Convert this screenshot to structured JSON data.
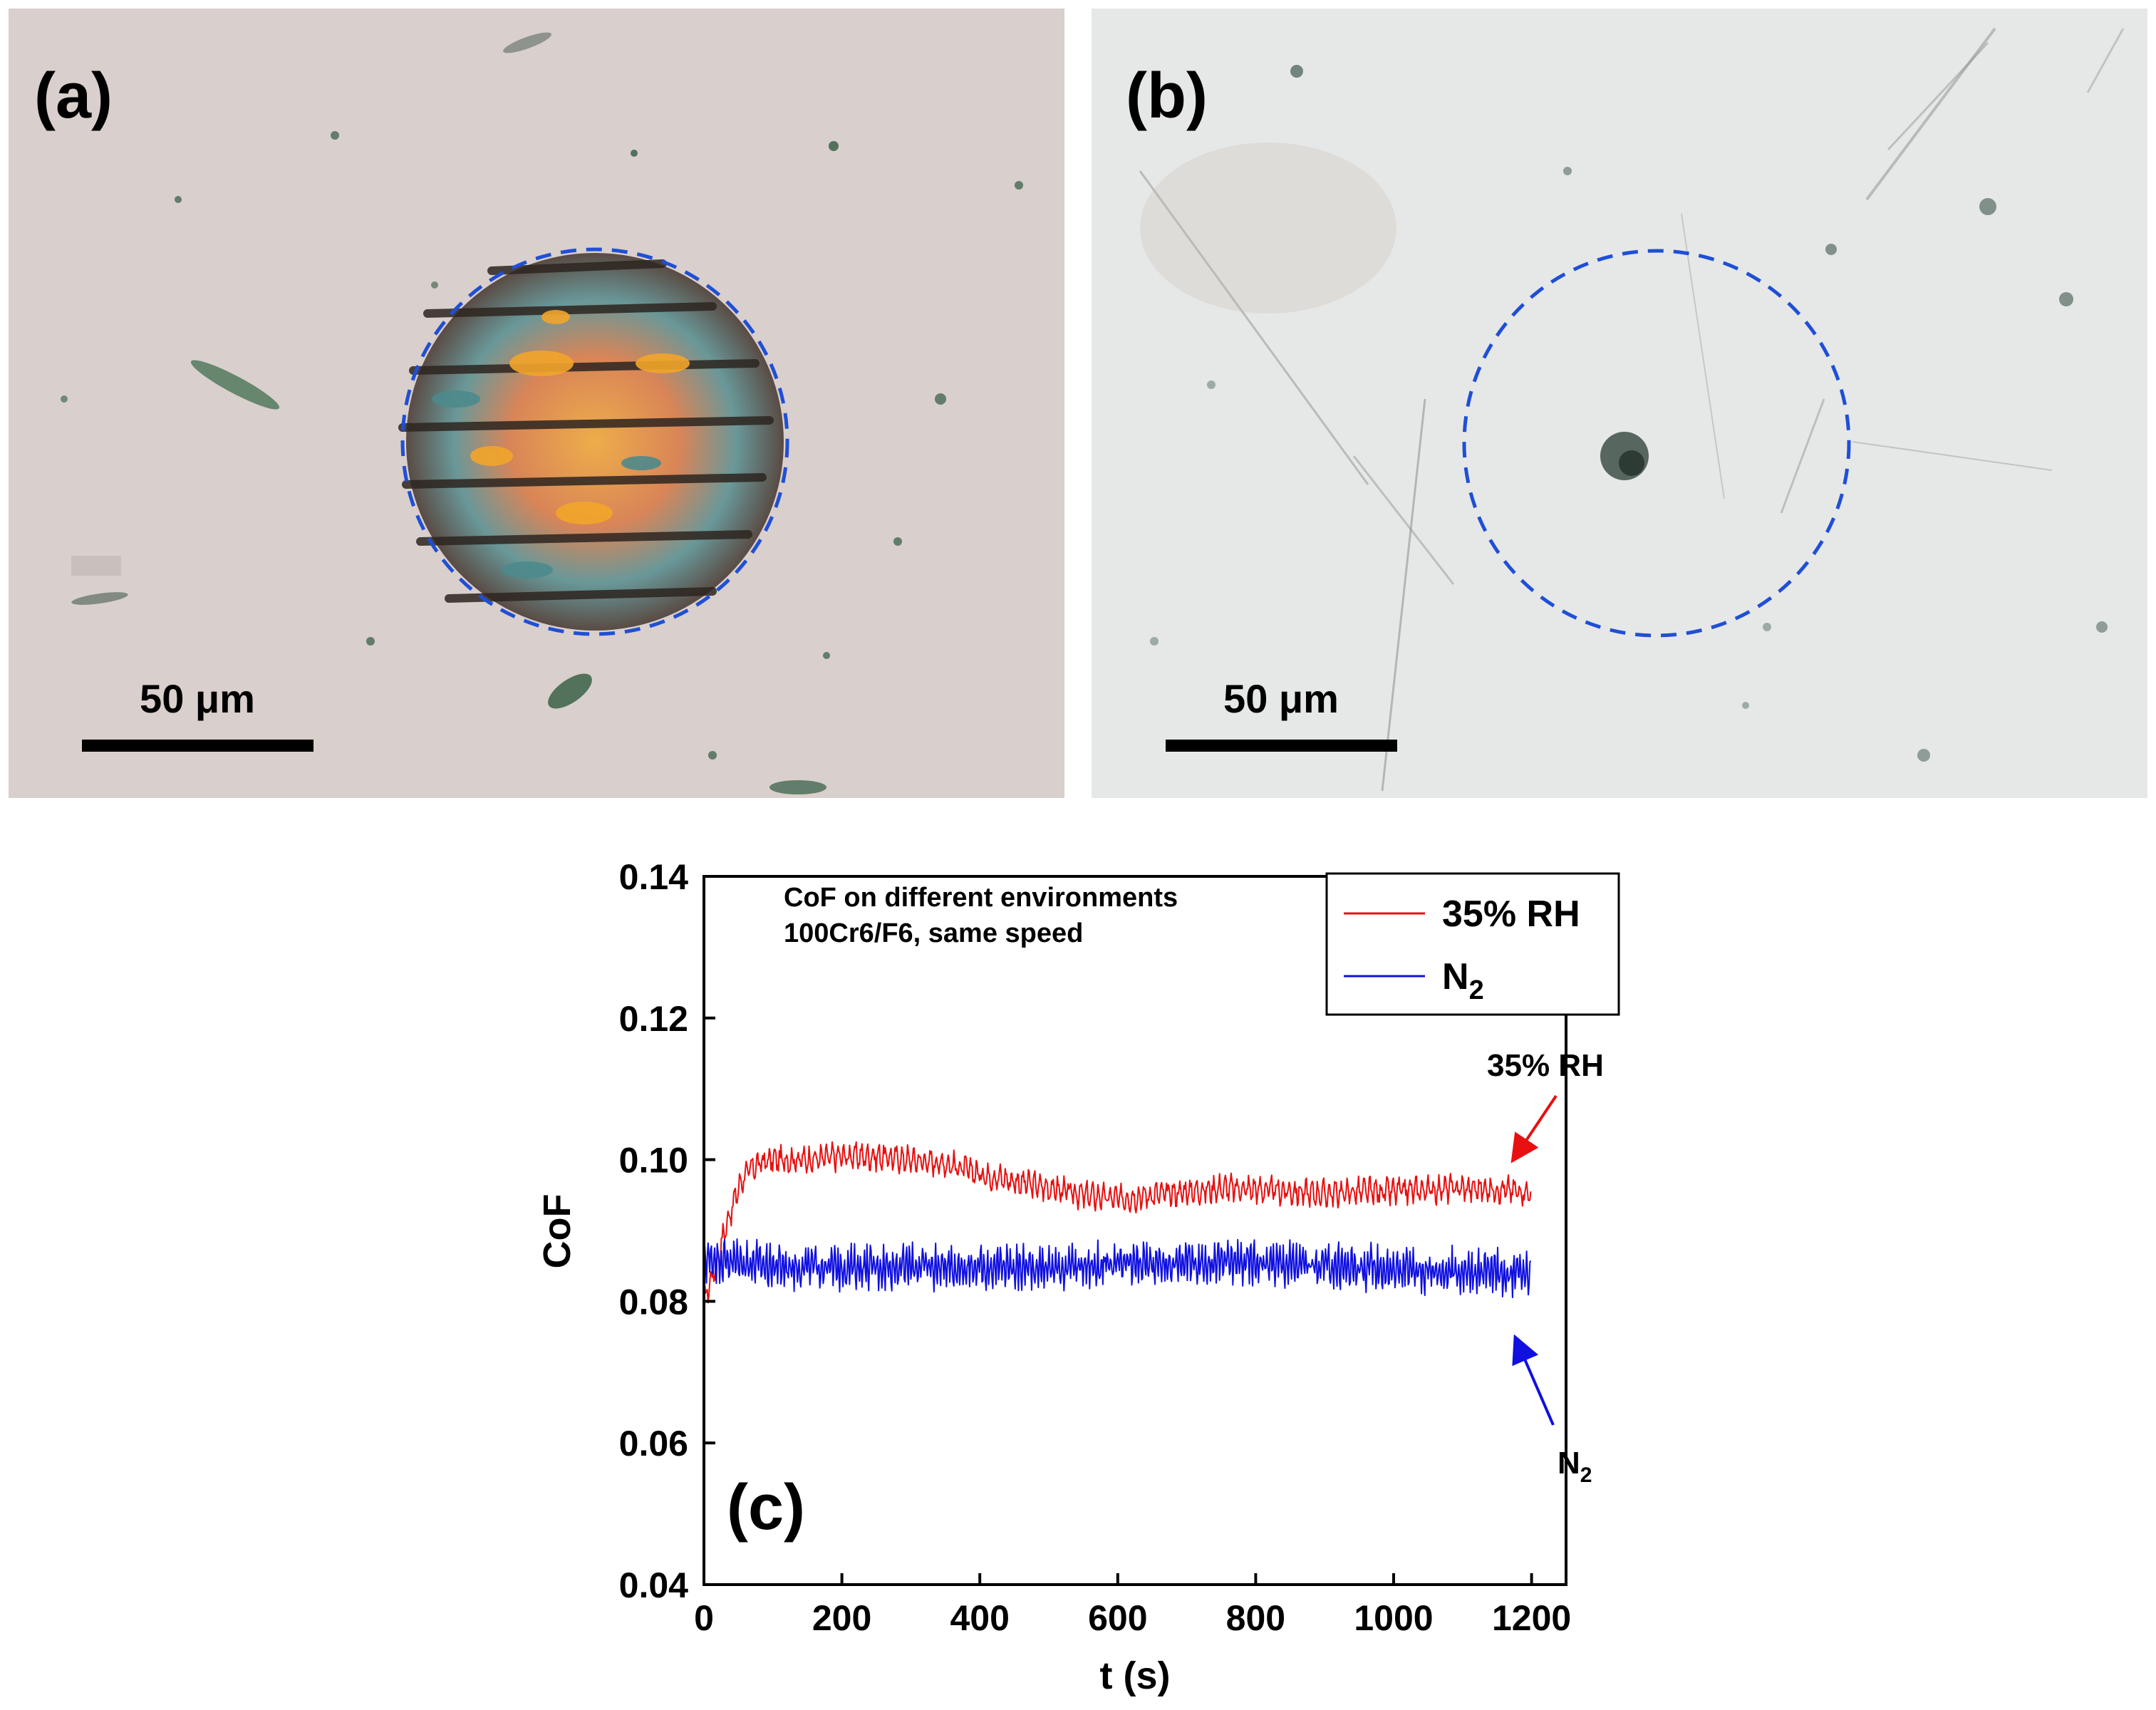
{
  "panels": {
    "a": {
      "label": "(a)",
      "scale_bar": "50 μm",
      "background": "#d9cfcc"
    },
    "b": {
      "label": "(b)",
      "scale_bar": "50 μm",
      "background": "#e6e8e8"
    }
  },
  "chart_data": {
    "type": "line",
    "panel_label": "(c)",
    "xlabel": "t (s)",
    "ylabel": "CoF",
    "xlim": [
      0,
      1250
    ],
    "ylim": [
      0.04,
      0.14
    ],
    "xticks": [
      0,
      200,
      400,
      600,
      800,
      1000,
      1200
    ],
    "yticks": [
      0.04,
      0.06,
      0.08,
      0.1,
      0.12,
      0.14
    ],
    "xtick_labels": [
      "0",
      "200",
      "400",
      "600",
      "800",
      "1000",
      "1200"
    ],
    "ytick_labels": [
      "0.04",
      "0.06",
      "0.08",
      "0.10",
      "0.12",
      "0.14"
    ],
    "grid": false,
    "annotation_lines": [
      "CoF on different environments",
      "100Cr6/F6, same speed"
    ],
    "legend_position": "top-right",
    "legend": [
      {
        "text": "35% RH",
        "color": "#e81010"
      },
      {
        "main": "N",
        "sub": "2",
        "color": "#1010e0"
      }
    ],
    "callouts": {
      "rh": {
        "text": "35% RH",
        "color": "#e81010"
      },
      "n2": {
        "main": "N",
        "sub": "2",
        "color": "#1010e0"
      }
    },
    "series": [
      {
        "color": "#e81010",
        "x": [
          0,
          10,
          20,
          30,
          40,
          50,
          60,
          80,
          100,
          150,
          200,
          250,
          300,
          350,
          400,
          450,
          500,
          550,
          600,
          650,
          700,
          750,
          800,
          850,
          900,
          950,
          1000,
          1050,
          1100,
          1150,
          1200
        ],
        "y": [
          0.08,
          0.083,
          0.086,
          0.09,
          0.093,
          0.096,
          0.098,
          0.0995,
          0.1,
          0.1,
          0.1005,
          0.1005,
          0.1,
          0.0995,
          0.098,
          0.097,
          0.096,
          0.095,
          0.0945,
          0.095,
          0.0955,
          0.096,
          0.0958,
          0.0955,
          0.0952,
          0.0955,
          0.0955,
          0.0958,
          0.096,
          0.0958,
          0.0955
        ],
        "noise": 0.0022
      },
      {
        "color": "#1010e0",
        "x": [
          0,
          20,
          100,
          200,
          300,
          400,
          500,
          600,
          700,
          800,
          900,
          1000,
          1100,
          1200
        ],
        "y": [
          0.086,
          0.086,
          0.085,
          0.0848,
          0.085,
          0.0848,
          0.0848,
          0.085,
          0.0855,
          0.0855,
          0.085,
          0.0845,
          0.0842,
          0.084
        ],
        "noise": 0.0036
      }
    ]
  }
}
